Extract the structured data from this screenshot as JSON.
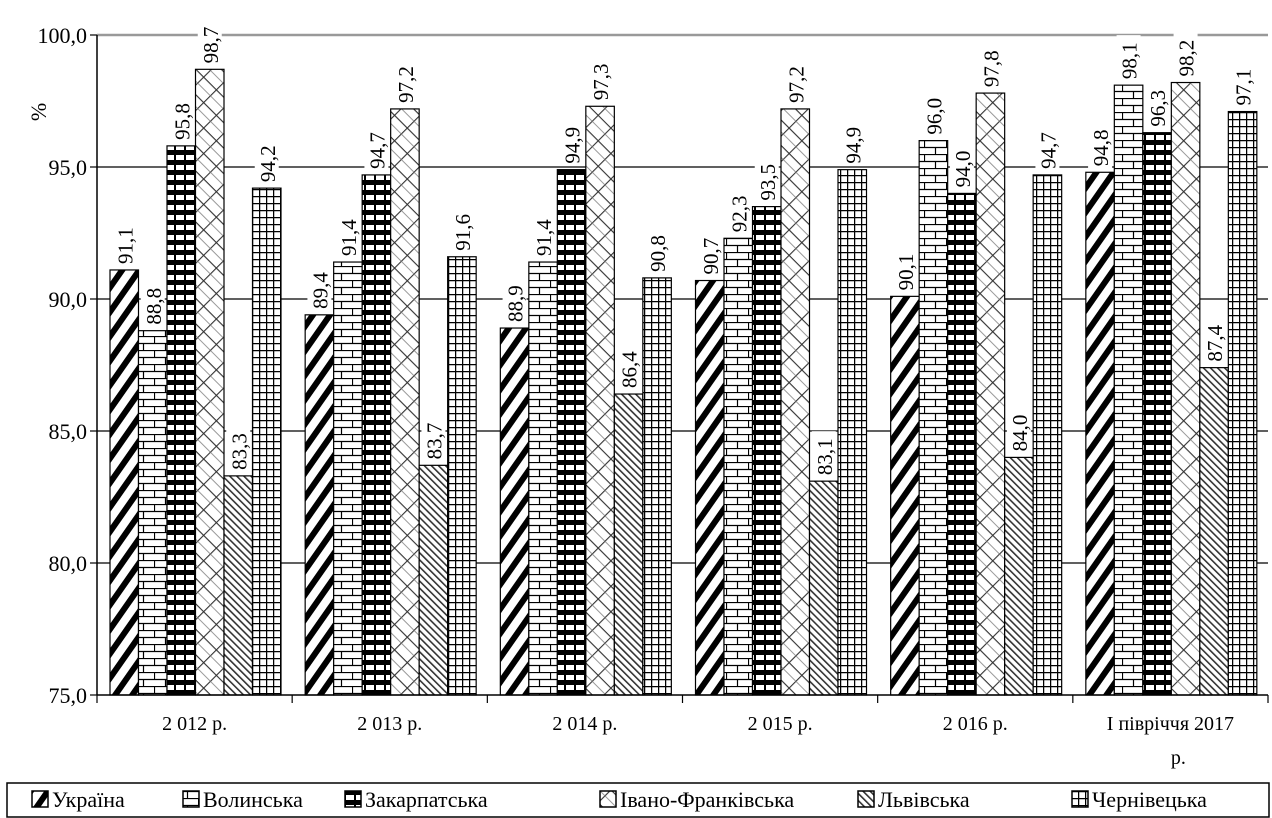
{
  "chart_data": {
    "type": "bar",
    "ylabel": "%",
    "ylim": [
      75,
      100
    ],
    "y_ticks": [
      "75,0",
      "80,0",
      "85,0",
      "90,0",
      "95,0",
      "100,0"
    ],
    "categories": [
      [
        "2 012 р."
      ],
      [
        "2 013 р."
      ],
      [
        "2 014 р."
      ],
      [
        "2 015 р."
      ],
      [
        "2 016 р."
      ],
      [
        "І півріччя 2017",
        "р."
      ]
    ],
    "series": [
      {
        "name": "Україна",
        "pattern": "hatch-thick",
        "values": [
          91.1,
          89.4,
          88.9,
          90.7,
          90.1,
          94.8
        ],
        "labels": [
          "91,1",
          "89,4",
          "88,9",
          "90,7",
          "90,1",
          "94,8"
        ]
      },
      {
        "name": "Волинська",
        "pattern": "brick",
        "values": [
          88.8,
          91.4,
          91.4,
          92.3,
          96.0,
          98.1
        ],
        "labels": [
          "88,8",
          "91,4",
          "91,4",
          "92,3",
          "96,0",
          "98,1"
        ]
      },
      {
        "name": "Закарпатська",
        "pattern": "hstripe",
        "values": [
          95.8,
          94.7,
          94.9,
          93.5,
          94.0,
          96.3
        ],
        "labels": [
          "95,8",
          "94,7",
          "94,9",
          "93,5",
          "94,0",
          "96,3"
        ]
      },
      {
        "name": "Івано-Франківська",
        "pattern": "diamond",
        "values": [
          98.7,
          97.2,
          97.3,
          97.2,
          97.8,
          98.2
        ],
        "labels": [
          "98,7",
          "97,2",
          "97,3",
          "97,2",
          "97,8",
          "98,2"
        ]
      },
      {
        "name": "Львівська",
        "pattern": "hatch-fine",
        "values": [
          83.3,
          83.7,
          86.4,
          83.1,
          84.0,
          87.4
        ],
        "labels": [
          "83,3",
          "83,7",
          "86,4",
          "83,1",
          "84,0",
          "87,4"
        ]
      },
      {
        "name": "Чернівецька",
        "pattern": "grid",
        "values": [
          94.2,
          91.6,
          90.8,
          94.9,
          94.7,
          97.1
        ],
        "labels": [
          "94,2",
          "91,6",
          "90,8",
          "94,9",
          "94,7",
          "97,1"
        ]
      }
    ],
    "grid": true,
    "legend": "bottom"
  }
}
